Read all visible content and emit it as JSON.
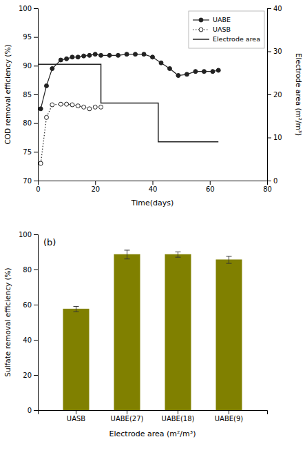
{
  "chart_data": [
    {
      "type": "line",
      "xlabel": "Time(days)",
      "ylabel": "COD removal efficiency (%)",
      "y2label": "Electrode area (m²/m³)",
      "series": [
        {
          "name": "UABE",
          "color": "#222222",
          "marker": "filled-circle",
          "line_style": "solid",
          "x": [
            1,
            3,
            5,
            8,
            10,
            12,
            14,
            16,
            18,
            20,
            22,
            25,
            28,
            31,
            34,
            37,
            40,
            43,
            46,
            49,
            52,
            55,
            58,
            61,
            63
          ],
          "values": [
            82.5,
            86.5,
            89.5,
            91.0,
            91.2,
            91.5,
            91.5,
            91.7,
            91.8,
            92.0,
            91.8,
            91.8,
            91.8,
            92.0,
            92.0,
            92.0,
            91.5,
            90.5,
            89.5,
            88.3,
            88.5,
            89.0,
            89.0,
            89.0,
            89.2
          ]
        },
        {
          "name": "UASB",
          "color": "#222222",
          "marker": "open-circle",
          "line_style": "dotted",
          "x": [
            1,
            3,
            5,
            8,
            10,
            12,
            14,
            16,
            18,
            20,
            22
          ],
          "values": [
            73.0,
            81.0,
            83.2,
            83.3,
            83.3,
            83.2,
            83.0,
            82.8,
            82.5,
            82.8,
            82.8
          ]
        },
        {
          "name": "Electrode area",
          "color": "#222222",
          "line_style": "solid",
          "axis": "y2",
          "x": [
            0,
            22,
            22,
            42,
            42,
            63
          ],
          "values": [
            27,
            27,
            18,
            18,
            9,
            9
          ]
        }
      ],
      "xlim": [
        0,
        80
      ],
      "xticks": [
        0,
        20,
        40,
        60,
        80
      ],
      "ylim": [
        70,
        100
      ],
      "yticks": [
        70,
        75,
        80,
        85,
        90,
        95,
        100
      ],
      "y2lim": [
        0,
        40
      ],
      "y2ticks": [
        0,
        10,
        20,
        30,
        40
      ],
      "legend": "upper right"
    },
    {
      "type": "bar",
      "xlabel": "Electrode area (m²/m³)",
      "ylabel": "Sulfate removal efficiency (%)",
      "categories": [
        "UASB",
        "UABE(27)",
        "UABE(18)",
        "UABE(9)"
      ],
      "values": [
        57.5,
        88.5,
        88.5,
        85.5
      ],
      "errors": [
        1.5,
        2.5,
        1.5,
        2.0
      ],
      "color": "#808000",
      "ylim": [
        0,
        100
      ],
      "yticks": [
        0,
        20,
        40,
        60,
        80,
        100
      ],
      "annotations": [
        "(b)"
      ]
    }
  ]
}
